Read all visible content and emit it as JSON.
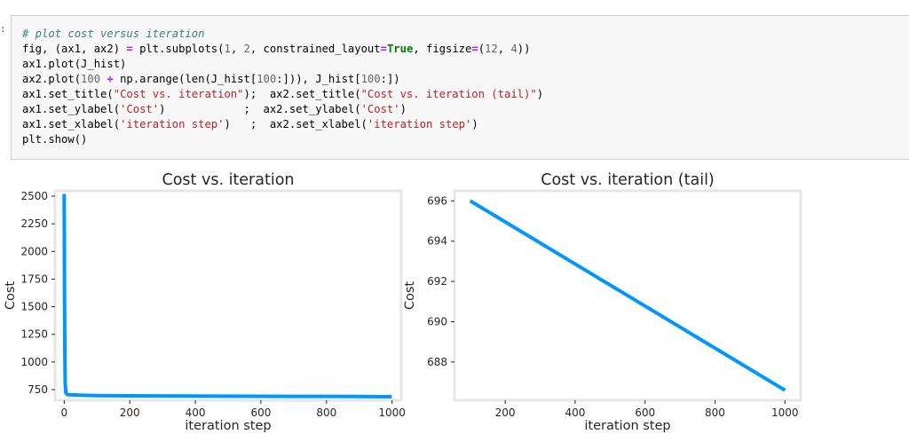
{
  "prompt": ":",
  "code": {
    "lines": [
      [
        {
          "t": "cm",
          "v": "# plot cost versus iteration"
        }
      ],
      [
        {
          "t": "",
          "v": "fig, (ax1, ax2) "
        },
        {
          "t": "op",
          "v": "="
        },
        {
          "t": "",
          "v": " plt.subplots("
        },
        {
          "t": "nu",
          "v": "1"
        },
        {
          "t": "",
          "v": ", "
        },
        {
          "t": "nu",
          "v": "2"
        },
        {
          "t": "",
          "v": ", constrained_layout"
        },
        {
          "t": "op",
          "v": "="
        },
        {
          "t": "kw",
          "v": "True"
        },
        {
          "t": "",
          "v": ", figsize"
        },
        {
          "t": "op",
          "v": "="
        },
        {
          "t": "",
          "v": "("
        },
        {
          "t": "nu",
          "v": "12"
        },
        {
          "t": "",
          "v": ", "
        },
        {
          "t": "nu",
          "v": "4"
        },
        {
          "t": "",
          "v": "))"
        }
      ],
      [
        {
          "t": "",
          "v": "ax1.plot(J_hist)"
        }
      ],
      [
        {
          "t": "",
          "v": "ax2.plot("
        },
        {
          "t": "nu",
          "v": "100"
        },
        {
          "t": "",
          "v": " "
        },
        {
          "t": "op",
          "v": "+"
        },
        {
          "t": "",
          "v": " np.arange(len(J_hist["
        },
        {
          "t": "nu",
          "v": "100"
        },
        {
          "t": "",
          "v": ":])), J_hist["
        },
        {
          "t": "nu",
          "v": "100"
        },
        {
          "t": "",
          "v": ":])"
        }
      ],
      [
        {
          "t": "",
          "v": "ax1.set_title("
        },
        {
          "t": "st",
          "v": "\"Cost vs. iteration\""
        },
        {
          "t": "",
          "v": ");  ax2.set_title("
        },
        {
          "t": "st",
          "v": "\"Cost vs. iteration (tail)\""
        },
        {
          "t": "",
          "v": ")"
        }
      ],
      [
        {
          "t": "",
          "v": "ax1.set_ylabel("
        },
        {
          "t": "st",
          "v": "'Cost'"
        },
        {
          "t": "",
          "v": ")            ;  ax2.set_ylabel("
        },
        {
          "t": "st",
          "v": "'Cost'"
        },
        {
          "t": "",
          "v": ")"
        }
      ],
      [
        {
          "t": "",
          "v": "ax1.set_xlabel("
        },
        {
          "t": "st",
          "v": "'iteration step'"
        },
        {
          "t": "",
          "v": ")   ;  ax2.set_xlabel("
        },
        {
          "t": "st",
          "v": "'iteration step'"
        },
        {
          "t": "",
          "v": ")"
        }
      ],
      [
        {
          "t": "",
          "v": "plt.show()"
        }
      ]
    ]
  },
  "colors": {
    "line": "#0096ff",
    "frame": "#e6e6e6"
  },
  "chart_data": [
    {
      "type": "line",
      "title": "Cost vs. iteration",
      "xlabel": "iteration step",
      "ylabel": "Cost",
      "xlim": [
        -28,
        1028
      ],
      "ylim": [
        654,
        2548
      ],
      "xticks": [
        0,
        200,
        400,
        600,
        800,
        1000
      ],
      "yticks": [
        750,
        1000,
        1250,
        1500,
        1750,
        2000,
        2250,
        2500
      ],
      "grid": false,
      "series": [
        {
          "x": [
            0,
            1,
            2,
            3,
            5,
            10,
            20,
            50,
            100,
            200,
            300,
            400,
            500,
            600,
            700,
            800,
            900,
            999
          ],
          "y": [
            2520,
            1600,
            1050,
            820,
            720,
            705,
            704,
            700,
            696,
            694,
            693,
            692,
            691,
            690,
            689.5,
            689,
            687.5,
            686.5
          ]
        }
      ]
    },
    {
      "type": "line",
      "title": "Cost vs. iteration (tail)",
      "xlabel": "iteration step",
      "ylabel": "Cost",
      "xlim": [
        55,
        1045
      ],
      "ylim": [
        686.1,
        696.5
      ],
      "xticks": [
        200,
        400,
        600,
        800,
        1000
      ],
      "yticks": [
        688,
        690,
        692,
        694,
        696
      ],
      "grid": false,
      "series": [
        {
          "x": [
            100,
            1000
          ],
          "y": [
            696,
            686.6
          ]
        }
      ]
    }
  ]
}
